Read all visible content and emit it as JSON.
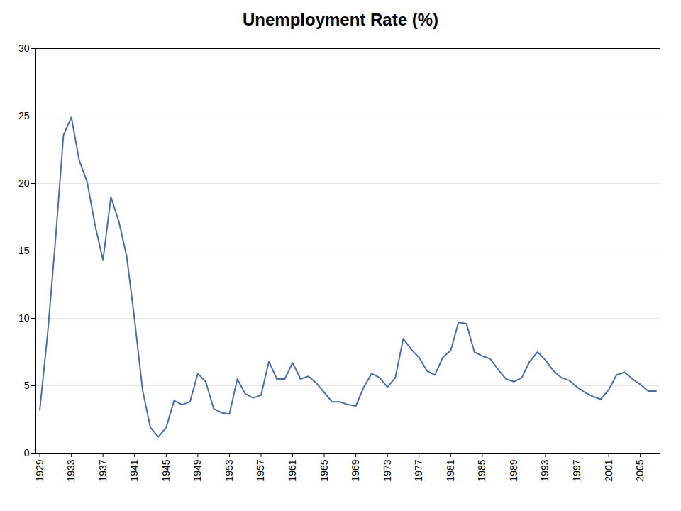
{
  "chart_data": {
    "type": "line",
    "title": "Unemployment Rate (%)",
    "x": [
      1929,
      1930,
      1931,
      1932,
      1933,
      1934,
      1935,
      1936,
      1937,
      1938,
      1939,
      1940,
      1941,
      1942,
      1943,
      1944,
      1945,
      1946,
      1947,
      1948,
      1949,
      1950,
      1951,
      1952,
      1953,
      1954,
      1955,
      1956,
      1957,
      1958,
      1959,
      1960,
      1961,
      1962,
      1963,
      1964,
      1965,
      1966,
      1967,
      1968,
      1969,
      1970,
      1971,
      1972,
      1973,
      1974,
      1975,
      1976,
      1977,
      1978,
      1979,
      1980,
      1981,
      1982,
      1983,
      1984,
      1985,
      1986,
      1987,
      1988,
      1989,
      1990,
      1991,
      1992,
      1993,
      1994,
      1995,
      1996,
      1997,
      1998,
      1999,
      2000,
      2001,
      2002,
      2003,
      2004,
      2005,
      2006,
      2007
    ],
    "values": [
      3.2,
      8.9,
      15.9,
      23.6,
      24.9,
      21.7,
      20.1,
      16.9,
      14.3,
      19.0,
      17.2,
      14.6,
      9.9,
      4.7,
      1.9,
      1.2,
      1.9,
      3.9,
      3.6,
      3.8,
      5.9,
      5.3,
      3.3,
      3.0,
      2.9,
      5.5,
      4.4,
      4.1,
      4.3,
      6.8,
      5.5,
      5.5,
      6.7,
      5.5,
      5.7,
      5.2,
      4.5,
      3.8,
      3.8,
      3.6,
      3.5,
      4.9,
      5.9,
      5.6,
      4.9,
      5.6,
      8.5,
      7.7,
      7.1,
      6.1,
      5.8,
      7.1,
      7.6,
      9.7,
      9.6,
      7.5,
      7.2,
      7.0,
      6.2,
      5.5,
      5.3,
      5.6,
      6.8,
      7.5,
      6.9,
      6.1,
      5.6,
      5.4,
      4.9,
      4.5,
      4.2,
      4.0,
      4.7,
      5.8,
      6.0,
      5.5,
      5.1,
      4.6,
      4.6
    ],
    "color": "#4a6fa5",
    "xlim": [
      1928.5,
      2007.5
    ],
    "xticks": [
      1929,
      1933,
      1937,
      1941,
      1945,
      1949,
      1953,
      1957,
      1961,
      1965,
      1969,
      1973,
      1977,
      1981,
      1985,
      1989,
      1993,
      1997,
      2001,
      2005
    ],
    "ylim": [
      0,
      30
    ],
    "yticks": [
      0,
      5,
      10,
      15,
      20,
      25,
      30
    ],
    "grid": true
  }
}
